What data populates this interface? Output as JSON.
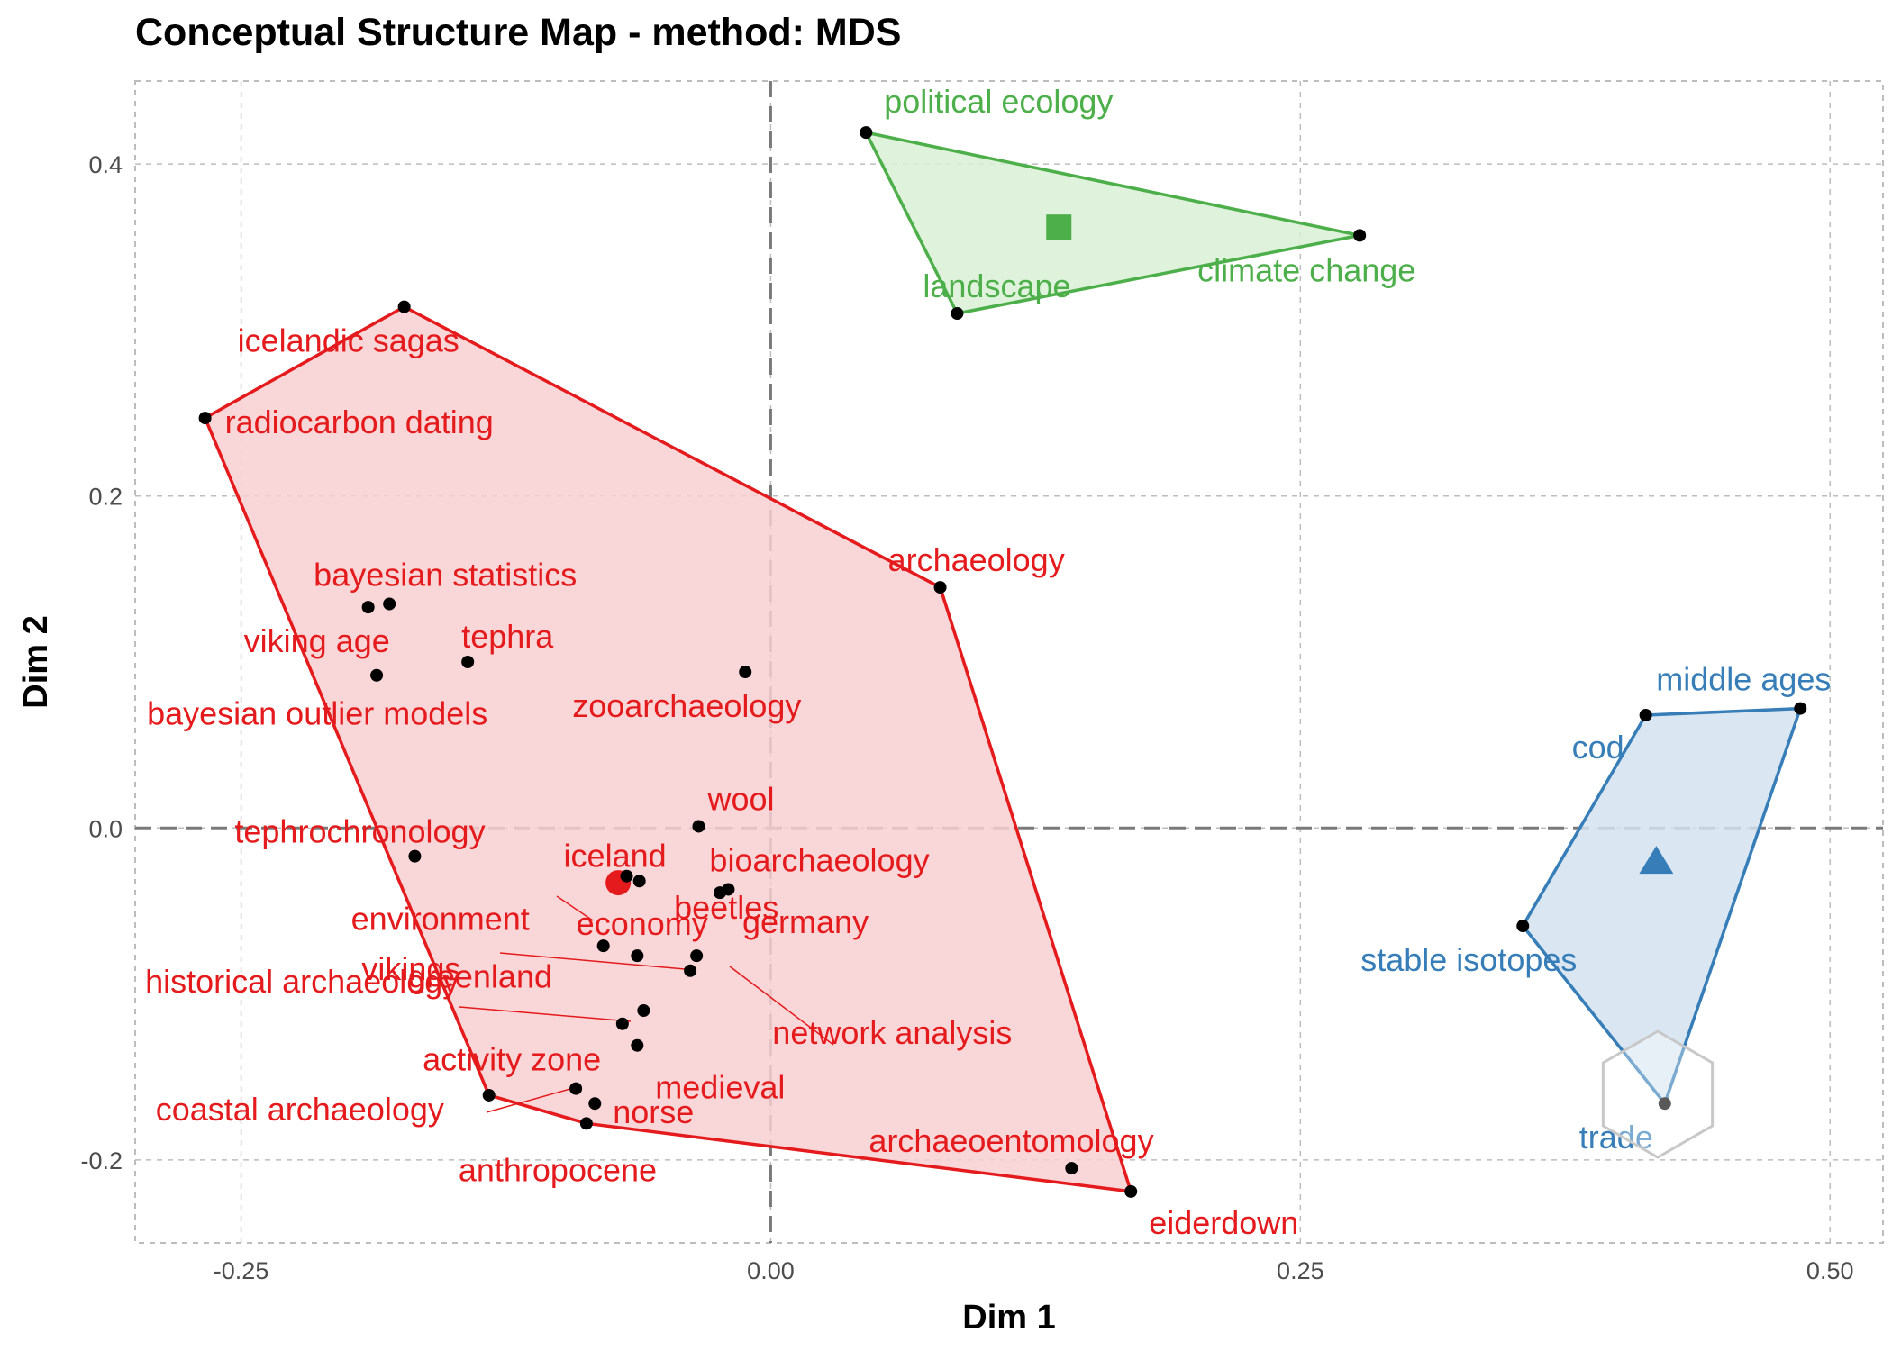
{
  "chart_data": {
    "type": "scatter",
    "title": "Conceptual Structure Map - method: MDS",
    "xlabel": "Dim 1",
    "ylabel": "Dim 2",
    "xlim": [
      -0.3,
      0.525
    ],
    "ylim": [
      -0.25,
      0.45
    ],
    "xticks": [
      -0.25,
      0.0,
      0.25,
      0.5
    ],
    "xtick_labels": [
      "-0.25",
      "0.00",
      "0.25",
      "0.50"
    ],
    "yticks": [
      -0.2,
      0.0,
      0.2,
      0.4
    ],
    "ytick_labels": [
      "-0.2",
      "0.0",
      "0.2",
      "0.4"
    ],
    "grid": true,
    "reference_lines": {
      "x": 0,
      "y": 0
    },
    "clusters": [
      {
        "color": "#e41a1c",
        "fill": "#f8cfd0",
        "centroid_marker": "circle",
        "centroid": [
          -0.072,
          -0.033
        ],
        "hull": [
          "radiocarbon dating",
          "icelandic sagas",
          "archaeology",
          "eiderdown",
          "anthropocene",
          "coastal archaeology"
        ],
        "points": [
          {
            "label": "icelandic sagas",
            "x": -0.173,
            "y": 0.314
          },
          {
            "label": "radiocarbon dating",
            "x": -0.267,
            "y": 0.247
          },
          {
            "label": "archaeology",
            "x": 0.08,
            "y": 0.145
          },
          {
            "label": "bayesian statistics",
            "x": -0.18,
            "y": 0.135
          },
          {
            "label": "viking age",
            "x": -0.19,
            "y": 0.133
          },
          {
            "label": "tephra",
            "x": -0.143,
            "y": 0.1
          },
          {
            "label": "bayesian outlier models",
            "x": -0.186,
            "y": 0.092
          },
          {
            "label": "zooarchaeology",
            "x": -0.012,
            "y": 0.094
          },
          {
            "label": "wool",
            "x": -0.034,
            "y": 0.001
          },
          {
            "label": "tephrochronology",
            "x": -0.168,
            "y": -0.017
          },
          {
            "label": "iceland",
            "x": -0.068,
            "y": -0.029
          },
          {
            "label": "environment",
            "x": -0.062,
            "y": -0.032
          },
          {
            "label": "bioarchaeology",
            "x": -0.02,
            "y": -0.037
          },
          {
            "label": "germany",
            "x": -0.024,
            "y": -0.039
          },
          {
            "label": "economy",
            "x": -0.079,
            "y": -0.071
          },
          {
            "label": "historical archaeology",
            "x": -0.038,
            "y": -0.086
          },
          {
            "label": "beetles",
            "x": -0.035,
            "y": -0.077
          },
          {
            "label": "greenland",
            "x": -0.07,
            "y": -0.118
          },
          {
            "label": "vikings",
            "x": -0.06,
            "y": -0.11
          },
          {
            "label": "medieval",
            "x": -0.063,
            "y": -0.131
          },
          {
            "label": "activity zone",
            "x": -0.092,
            "y": -0.157
          },
          {
            "label": "norse",
            "x": -0.083,
            "y": -0.166
          },
          {
            "label": "anthropocene",
            "x": -0.087,
            "y": -0.178
          },
          {
            "label": "coastal archaeology",
            "x": -0.133,
            "y": -0.161
          },
          {
            "label": "network analysis",
            "x": -0.063,
            "y": -0.077
          },
          {
            "label": "archaeoentomology",
            "x": 0.142,
            "y": -0.205
          },
          {
            "label": "eiderdown",
            "x": 0.17,
            "y": -0.219
          }
        ]
      },
      {
        "color": "#4daf4a",
        "fill": "#d9f0d5",
        "centroid_marker": "square",
        "centroid": [
          0.136,
          0.362
        ],
        "hull": [
          "political ecology",
          "climate change",
          "landscape"
        ],
        "points": [
          {
            "label": "political ecology",
            "x": 0.045,
            "y": 0.419
          },
          {
            "label": "climate change",
            "x": 0.278,
            "y": 0.357
          },
          {
            "label": "landscape",
            "x": 0.088,
            "y": 0.31
          }
        ]
      },
      {
        "color": "#377eb8",
        "fill": "#d4e3f1",
        "centroid_marker": "triangle",
        "centroid": [
          0.418,
          -0.02
        ],
        "hull": [
          "cod",
          "middle ages",
          "trade",
          "stable isotopes"
        ],
        "points": [
          {
            "label": "cod",
            "x": 0.413,
            "y": 0.068
          },
          {
            "label": "middle ages",
            "x": 0.486,
            "y": 0.072
          },
          {
            "label": "stable isotopes",
            "x": 0.355,
            "y": -0.059
          },
          {
            "label": "trade",
            "x": 0.422,
            "y": -0.166
          }
        ]
      }
    ]
  }
}
